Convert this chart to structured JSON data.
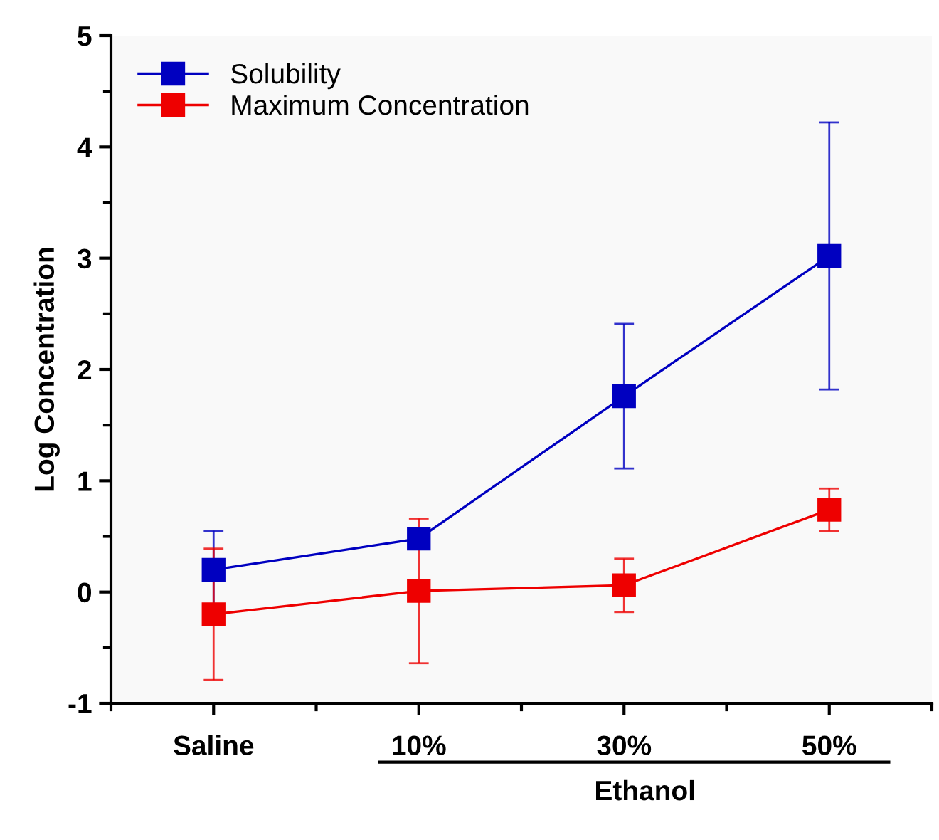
{
  "chart_data": {
    "type": "line",
    "ylabel": "Log Concentration",
    "xlabel": "Ethanol",
    "categories": [
      "Saline",
      "10%",
      "30%",
      "50%"
    ],
    "series": [
      {
        "name": "Solubility",
        "color": "#0000c0",
        "values": [
          0.2,
          0.48,
          1.76,
          3.02
        ],
        "errors": [
          0.35,
          null,
          0.65,
          1.2
        ]
      },
      {
        "name": "Maximum Concentration",
        "color": "#ee0000",
        "values": [
          -0.2,
          0.01,
          0.06,
          0.74
        ],
        "errors": [
          0.59,
          0.65,
          0.24,
          0.19
        ]
      }
    ],
    "ylim": [
      -1,
      5
    ],
    "yticks": [
      -1,
      0,
      1,
      2,
      3,
      4,
      5
    ],
    "marker": "square",
    "line_style": "solid",
    "grid": false,
    "legend": "top left"
  }
}
